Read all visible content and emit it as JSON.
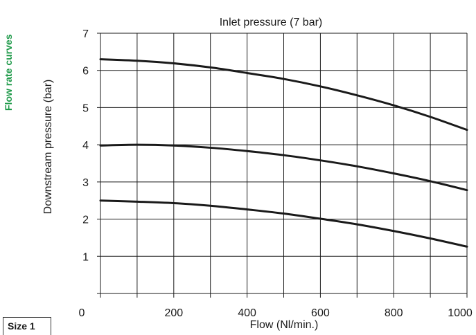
{
  "side_label": "Flow rate curves",
  "size_tag": "Size 1",
  "chart_data": {
    "type": "line",
    "title": "Inlet pressure (7 bar)",
    "xlabel": "Flow (Nl/min.)",
    "ylabel": "Downstream pressure (bar)",
    "xlim": [
      0,
      1000
    ],
    "ylim": [
      0,
      7
    ],
    "x_tick_labels": [
      "0",
      "200",
      "400",
      "600",
      "800",
      "1000"
    ],
    "y_tick_labels": [
      "1",
      "2",
      "3",
      "4",
      "5",
      "6",
      "7"
    ],
    "grid": true,
    "series": [
      {
        "x": [
          0,
          100,
          200,
          300,
          400,
          500,
          600,
          700,
          800,
          900,
          1000
        ],
        "y": [
          6.3,
          6.26,
          6.19,
          6.08,
          5.93,
          5.77,
          5.57,
          5.33,
          5.06,
          4.75,
          4.4
        ]
      },
      {
        "x": [
          0,
          100,
          200,
          300,
          400,
          500,
          600,
          700,
          800,
          900,
          1000
        ],
        "y": [
          3.98,
          4.0,
          3.98,
          3.92,
          3.83,
          3.72,
          3.58,
          3.42,
          3.23,
          3.02,
          2.78
        ]
      },
      {
        "x": [
          0,
          100,
          200,
          300,
          400,
          500,
          600,
          700,
          800,
          900,
          1000
        ],
        "y": [
          2.5,
          2.47,
          2.43,
          2.36,
          2.26,
          2.15,
          2.01,
          1.86,
          1.68,
          1.48,
          1.26
        ]
      }
    ],
    "line_color": "#1a1a1a",
    "grid_color": "#1a1a1a"
  }
}
